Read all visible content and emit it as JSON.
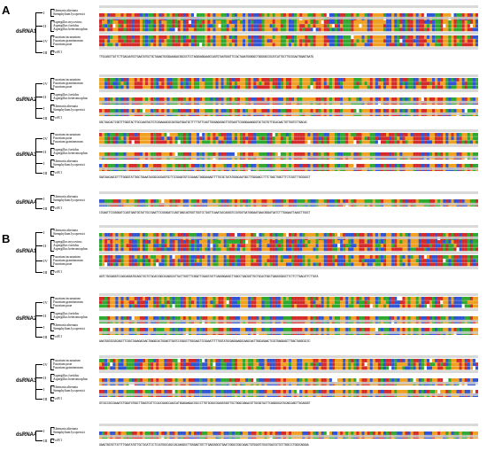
{
  "panels": [
    {
      "label": "A",
      "groups": [
        {
          "name": "dsRNA1",
          "clades": [
            {
              "roman": "I",
              "species": [
                "Alternaria alternata",
                "Stemphylium lycopersici"
              ]
            },
            {
              "roman": "II",
              "species": [
                "Aspergillus mycovirus",
                "Aspergillus foetidus",
                "Aspergillus heteromorphus"
              ]
            },
            {
              "roman": "IV",
              "species": [
                "Fusarium incarnatum",
                "Fusarium graminearum",
                "Fusarium poae"
              ]
            },
            {
              "roman": "III",
              "species": [
                "FoAV1"
              ]
            }
          ],
          "sequence": "TTGCAGGTTATTCTTGACAATGCTGAATATGCTGCTAAAGTGCGGAAGGACGGCGCTCCTAGGGAGGAAGCCAGTGTAATGGGTTCCACTAAATGGGGGCTGGGGGCCGCATCATTGCTTGCGCAATGGAGTAATG"
        },
        {
          "name": "dsRNA2",
          "clades": [
            {
              "roman": "IV",
              "species": [
                "Fusarium incarnatum",
                "Fusarium graminearum",
                "Fusarium poae"
              ]
            },
            {
              "roman": "II",
              "species": [
                "Aspergillus foetidus",
                "Aspergillus heteromorphus"
              ]
            },
            {
              "roman": "I",
              "species": [
                "Alternaria alternata",
                "Stemphylium lycopersici"
              ]
            },
            {
              "roman": "III",
              "species": [
                "FoAV1"
              ]
            }
          ],
          "sequence": "GGCTAACACTCGGTTTGGGTACTTGCCAAGTACTGTCGGAAAGCGCGATGATGGATGCTTTTTGTTCAGTTGGGAGGGAGTTGTGAGTTCGGGGAAAGGGTGCTGCTGTTGCACAACTGTTGGTGTTGACAC"
        },
        {
          "name": "dsRNA3",
          "clades": [
            {
              "roman": "IV",
              "species": [
                "Fusarium incarnatum",
                "Fusarium poae",
                "Fusarium graminearum"
              ]
            },
            {
              "roman": "II",
              "species": [
                "Aspergillus foetidus",
                "Aspergillus heteromorphus"
              ]
            },
            {
              "roman": "I",
              "species": [
                "Alternaria alternata",
                "Stemphylium lycopersici"
              ]
            },
            {
              "roman": "III",
              "species": [
                "FoAV1"
              ]
            }
          ],
          "sequence": "GGATAACAACGTTTTGGGGTATTGGCTGAAATACGGCACGAGTGCTTCCGAGATGTCCGAAACTAGGAAGAGTTTTGCGCTATATGGACAATGGCTTGGGAACCTTTCTAGCTGGGTTTCTCGGTTTGCGGGCT"
        },
        {
          "name": "dsRNA4",
          "clades": [
            {
              "roman": "I",
              "species": [
                "Alternaria alternata",
                "Stemphylium lycopersici"
              ]
            },
            {
              "roman": "III",
              "species": [
                "FoAV1"
              ]
            }
          ],
          "sequence": "CCGAATTCCGGGGATCCAGTGAGTGGTATTGCCGAATTCCGGGGATCCAGTGAGCAGTGGTTGGTCCTAGTTCAAATACCAGGGTCCATGGTGATGGGAATGAACGGGATGATCTTTGAGAATTAAGCTTGGCT"
        }
      ]
    },
    {
      "label": "B",
      "groups": [
        {
          "name": "dsRNA1",
          "clades": [
            {
              "roman": "I",
              "species": [
                "Alternaria alternata",
                "Stemphylium lycopersici"
              ]
            },
            {
              "roman": "II",
              "species": [
                "Aspergillus mycovirus",
                "Aspergillus foetidus",
                "Aspergillus heteromorphus"
              ]
            },
            {
              "roman": "IV",
              "species": [
                "Fusarium incarnatum",
                "Fusarium graminearum",
                "Fusarium poae"
              ]
            },
            {
              "roman": "III",
              "species": [
                "FoAV1"
              ]
            }
          ],
          "sequence": "AGTCTGCGAGGTCCAGCAGGATGCAGCTGCTCTACACCGGCGCAGGCATTACTTGGTTTCGGGTTCGAGCTATTCAGGGGAGGCTTAGCCTGACGGTTGCTGCACTGGCTGAGGCGGGCTTCTTCTTAACATTCTTATA"
        },
        {
          "name": "dsRNA2",
          "clades": [
            {
              "roman": "IV",
              "species": [
                "Fusarium incarnatum",
                "Fusarium graminearum",
                "Fusarium poae"
              ]
            },
            {
              "roman": "II",
              "species": [
                "Aspergillus foetidus",
                "Aspergillus heteromorphus"
              ]
            },
            {
              "roman": "I",
              "species": [
                "Alternaria alternata",
                "Stemphylium lycopersici"
              ]
            },
            {
              "roman": "III",
              "species": [
                "FoAV1"
              ]
            }
          ],
          "sequence": "AAATGGCGCGGCAGCTTCGGCTAAAGACAACTGAGGCACTGGAGTTGATCCCGGGCTTGGCAACTCCGAAATTTTTGGTATGCGAGGAAGGCAAGCAATTGGCAGAACTCCGTGAGGAGCTTGACTAGGCGCCC"
        },
        {
          "name": "dsRNA3",
          "clades": [
            {
              "roman": "IV",
              "species": [
                "Fusarium incarnatum",
                "Fusarium poae",
                "Fusarium graminearum"
              ]
            },
            {
              "roman": "II",
              "species": [
                "Aspergillus foetidus",
                "Aspergillus heteromorphus"
              ]
            },
            {
              "roman": "I",
              "species": [
                "Alternaria alternata",
                "Stemphylium lycopersici"
              ]
            },
            {
              "roman": "III",
              "species": [
                "FoAV1"
              ]
            }
          ],
          "sequence": "GTCGCCGCCGAAATCTGGATGTGGCTTGAGTCGTTCCACCGAGCCAACCATGGAGAAGACCGCCCTTGTGCGGCCGAGGTAGTTGCTGGGCGAGACGTTGCGGTACTTCAGGGGCATGCAGCAGGTTGCAGGGT"
        },
        {
          "name": "dsRNA4",
          "clades": [
            {
              "roman": "I",
              "species": [
                "Alternaria alternata",
                "Stemphylium lycopersici"
              ]
            },
            {
              "roman": "III",
              "species": [
                "FoAV1"
              ]
            }
          ],
          "sequence": "GAAGTGGTGTTATTTTGAATATGTTGCTGCATTCCTCCATGGCCAGCCACAAGGGCTTGGGAGTGTCTTGAGGGGCGTGAATCGGGCCGGCAGACTGTGGATGTGCATGACCGTCGTTGGCCCTGGGCAGGAA"
        }
      ]
    }
  ],
  "colors": {
    "A": "#2fa82f",
    "C": "#2f55d4",
    "G": "#f0a020",
    "T": "#d42a2a",
    "gap": "#ffffff",
    "consensus": "#cfcfcf"
  }
}
